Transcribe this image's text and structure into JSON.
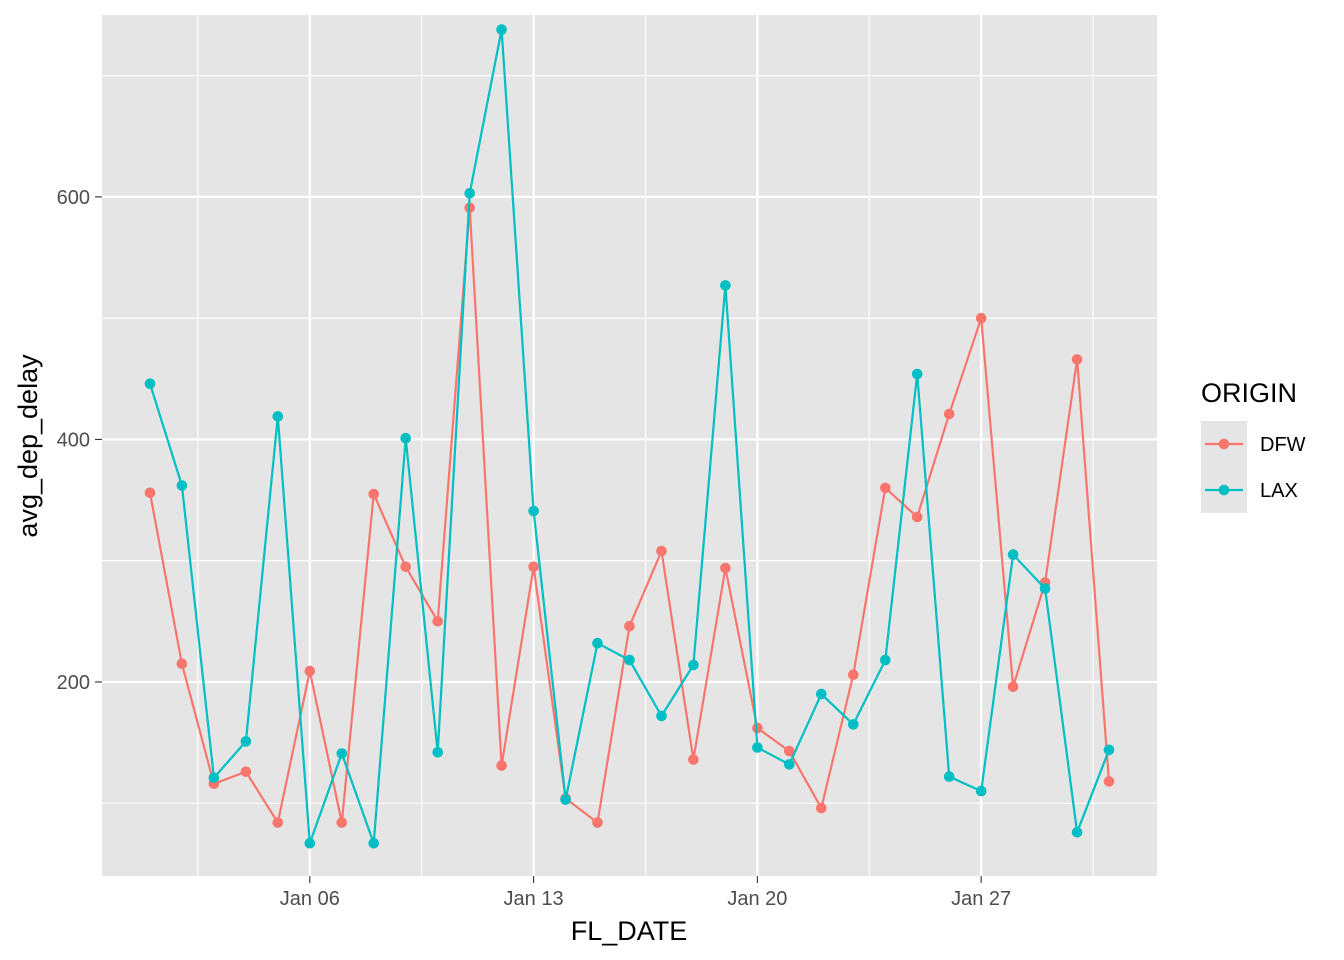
{
  "chart_data": {
    "type": "line",
    "xlabel": "FL_DATE",
    "ylabel": "avg_dep_delay",
    "x_ticks": [
      "2024-01-06",
      "2024-01-13",
      "2024-01-20",
      "2024-01-27"
    ],
    "x_tick_labels": [
      "Jan 06",
      "Jan 13",
      "Jan 20",
      "Jan 27"
    ],
    "xlim": [
      "2024-01-01",
      "2024-01-31"
    ],
    "y_ticks": [
      200,
      400,
      600
    ],
    "y_tick_labels": [
      "200",
      "400",
      "600"
    ],
    "ylim": [
      40,
      750
    ],
    "grid": true,
    "background": "#E5E5E5",
    "legend": {
      "title": "ORIGIN",
      "position": "right"
    },
    "series": [
      {
        "name": "DFW",
        "color": "#F8766D",
        "x": [
          "2024-01-01",
          "2024-01-02",
          "2024-01-03",
          "2024-01-04",
          "2024-01-05",
          "2024-01-06",
          "2024-01-07",
          "2024-01-08",
          "2024-01-09",
          "2024-01-10",
          "2024-01-11",
          "2024-01-12",
          "2024-01-13",
          "2024-01-14",
          "2024-01-15",
          "2024-01-16",
          "2024-01-17",
          "2024-01-18",
          "2024-01-19",
          "2024-01-20",
          "2024-01-21",
          "2024-01-22",
          "2024-01-23",
          "2024-01-24",
          "2024-01-25",
          "2024-01-26",
          "2024-01-27",
          "2024-01-28",
          "2024-01-29",
          "2024-01-30",
          "2024-01-31"
        ],
        "values": [
          356,
          215,
          116,
          126,
          84,
          209,
          84,
          355,
          295,
          250,
          591,
          131,
          295,
          104,
          84,
          246,
          308,
          136,
          294,
          162,
          143,
          96,
          206,
          360,
          336,
          421,
          500,
          196,
          282,
          466,
          118
        ]
      },
      {
        "name": "LAX",
        "color": "#00BFC4",
        "x": [
          "2024-01-01",
          "2024-01-02",
          "2024-01-03",
          "2024-01-04",
          "2024-01-05",
          "2024-01-06",
          "2024-01-07",
          "2024-01-08",
          "2024-01-09",
          "2024-01-10",
          "2024-01-11",
          "2024-01-12",
          "2024-01-13",
          "2024-01-14",
          "2024-01-15",
          "2024-01-16",
          "2024-01-17",
          "2024-01-18",
          "2024-01-19",
          "2024-01-20",
          "2024-01-21",
          "2024-01-22",
          "2024-01-23",
          "2024-01-24",
          "2024-01-25",
          "2024-01-26",
          "2024-01-27",
          "2024-01-28",
          "2024-01-29",
          "2024-01-30",
          "2024-01-31"
        ],
        "values": [
          446,
          362,
          121,
          151,
          419,
          67,
          141,
          67,
          401,
          142,
          603,
          738,
          341,
          103,
          232,
          218,
          172,
          214,
          527,
          146,
          132,
          190,
          165,
          218,
          454,
          122,
          110,
          305,
          277,
          76,
          144
        ]
      }
    ]
  }
}
